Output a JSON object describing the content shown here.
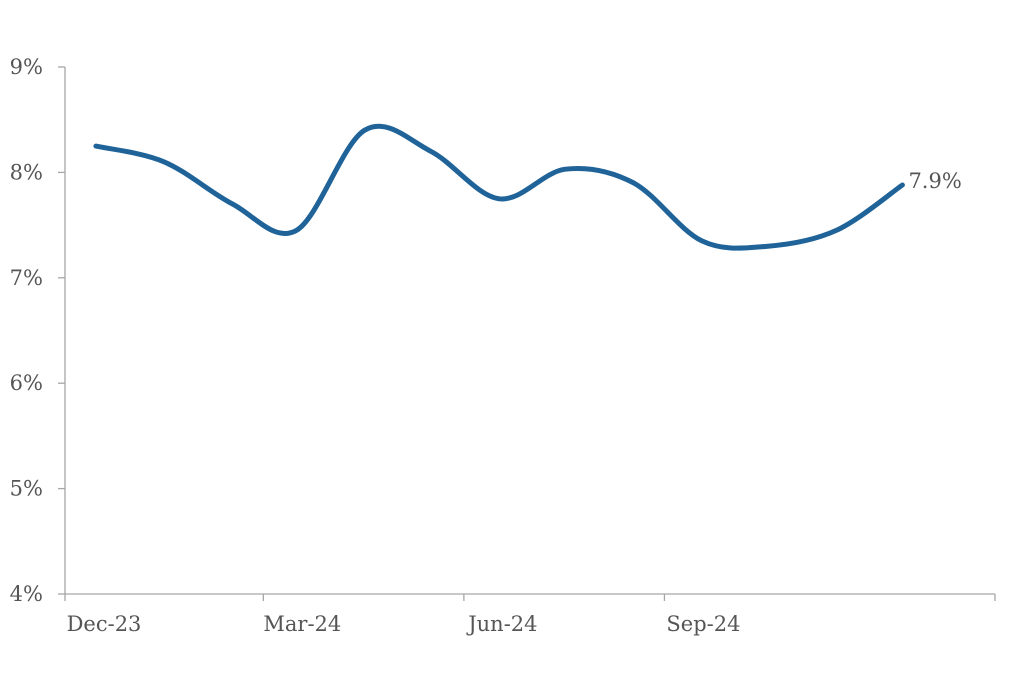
{
  "chart_data": {
    "type": "line",
    "title": "",
    "xlabel": "",
    "ylabel": "",
    "grid": false,
    "x_tick_labels": [
      "Dec-23",
      "Mar-24",
      "Jun-24",
      "Sep-24"
    ],
    "y_tick_labels": [
      "4%",
      "5%",
      "6%",
      "7%",
      "8%",
      "9%"
    ],
    "ylim": [
      4,
      9
    ],
    "xlim": [
      "2023-12-01",
      "2025-01-01"
    ],
    "series": [
      {
        "color": "#1f6399",
        "x": [
          "2023-12-01",
          "2024-01-01",
          "2024-02-01",
          "2024-03-01",
          "2024-04-01",
          "2024-05-01",
          "2024-06-01",
          "2024-07-01",
          "2024-08-01",
          "2024-09-01",
          "2024-10-01",
          "2024-11-01",
          "2024-12-01"
        ],
        "values": [
          8.25,
          8.1,
          7.7,
          7.45,
          8.4,
          8.2,
          7.75,
          8.03,
          7.9,
          7.35,
          7.3,
          7.45,
          7.88
        ]
      }
    ],
    "end_label": "7.9%"
  }
}
